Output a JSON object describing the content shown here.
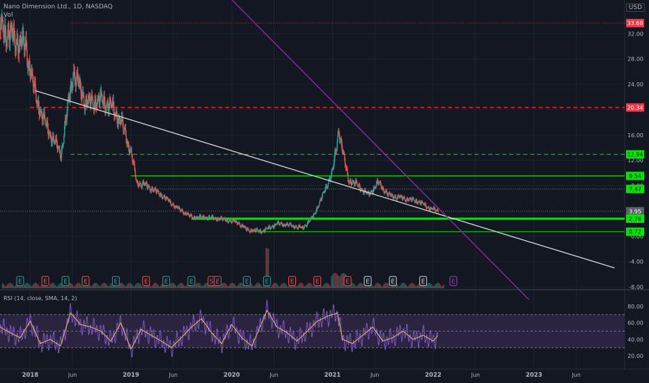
{
  "header": {
    "symbol": "Nano Dimension Ltd., 1D, NASDAQ",
    "volume_label": "Vol",
    "currency": "USD"
  },
  "rsi_header": {
    "text": "RSI (14, close, SMA, 14, 2)"
  },
  "colors": {
    "background": "#131722",
    "grid": "#1e222d",
    "candle_up": "#26a69a",
    "candle_down": "#ef5350",
    "green_level": "#00e600",
    "red_level": "#ff1a1a",
    "trendline_white": "#d9d9d9",
    "trendline_purple": "#9c27b0",
    "rsi_line": "#7e57c2",
    "rsi_ma": "#f0c05a",
    "rsi_band": "#2a2440"
  },
  "chart_data": {
    "type": "candlestick",
    "title": "Nano Dimension Ltd., 1D, NASDAQ",
    "y_axis": {
      "ticks": [
        "32.00",
        "28.00",
        "24.00",
        "20.00",
        "16.00",
        "12.00",
        "8.00",
        "4.00",
        "0.00",
        "-4.00",
        "-8.00"
      ],
      "range": [
        -8,
        36
      ]
    },
    "x_axis": {
      "ticks": [
        "2018",
        "Jun",
        "2019",
        "Jun",
        "2020",
        "Jun",
        "2021",
        "Jun",
        "2022",
        "Jun",
        "2023",
        "Jun"
      ]
    },
    "price_labels": [
      {
        "value": 33.68,
        "text": "33.68",
        "kind": "red"
      },
      {
        "value": 20.34,
        "text": "20.34",
        "kind": "red"
      },
      {
        "value": 12.94,
        "text": "12.94",
        "kind": "green"
      },
      {
        "value": 9.54,
        "text": "9.54",
        "kind": "green"
      },
      {
        "value": 7.47,
        "text": "7.47",
        "kind": "green"
      },
      {
        "value": 3.95,
        "text": "3.95",
        "kind": "current"
      },
      {
        "value": 2.78,
        "text": "2.78",
        "kind": "green"
      },
      {
        "value": 0.72,
        "text": "0.72",
        "kind": "green"
      }
    ],
    "horizontal_levels": [
      {
        "value": 33.68,
        "color": "red",
        "style": "dotted",
        "from_year": 2018.4
      },
      {
        "value": 20.34,
        "color": "red",
        "style": "dashed",
        "from_year": 2018.0
      },
      {
        "value": 12.94,
        "color": "green",
        "style": "dashed",
        "from_year": 2018.4
      },
      {
        "value": 9.54,
        "color": "green",
        "style": "solid",
        "from_year": 2019.0
      },
      {
        "value": 7.47,
        "color": "green",
        "style": "dotted",
        "from_year": 2019.1
      },
      {
        "value": 3.95,
        "color": "gray",
        "style": "dotted",
        "from_year": 2017.7
      },
      {
        "value": 2.78,
        "color": "green",
        "style": "thick",
        "from_year": 2019.6
      },
      {
        "value": 0.72,
        "color": "green",
        "style": "solid",
        "from_year": 2020.2
      }
    ],
    "trendlines": [
      {
        "name": "white",
        "from": {
          "year": 2018.05,
          "value": 23.0
        },
        "to": {
          "year": 2023.8,
          "value": -5.0
        }
      },
      {
        "name": "purple",
        "from": {
          "year": 2019.65,
          "value": 43.0
        },
        "to": {
          "year": 2022.95,
          "value": -10.0
        }
      }
    ],
    "price_series": [
      {
        "year": 2017.7,
        "value": 33.0
      },
      {
        "year": 2017.85,
        "value": 31.0
      },
      {
        "year": 2017.95,
        "value": 30.0
      },
      {
        "year": 2018.05,
        "value": 22.0
      },
      {
        "year": 2018.15,
        "value": 17.5
      },
      {
        "year": 2018.3,
        "value": 13.0
      },
      {
        "year": 2018.42,
        "value": 26.0
      },
      {
        "year": 2018.55,
        "value": 21.0
      },
      {
        "year": 2018.7,
        "value": 21.5
      },
      {
        "year": 2018.8,
        "value": 20.5
      },
      {
        "year": 2018.9,
        "value": 18.0
      },
      {
        "year": 2019.0,
        "value": 13.0
      },
      {
        "year": 2019.05,
        "value": 8.5
      },
      {
        "year": 2019.15,
        "value": 8.0
      },
      {
        "year": 2019.3,
        "value": 6.5
      },
      {
        "year": 2019.45,
        "value": 4.5
      },
      {
        "year": 2019.6,
        "value": 3.0
      },
      {
        "year": 2019.75,
        "value": 3.0
      },
      {
        "year": 2019.9,
        "value": 2.7
      },
      {
        "year": 2020.05,
        "value": 2.2
      },
      {
        "year": 2020.15,
        "value": 1.0
      },
      {
        "year": 2020.3,
        "value": 0.8
      },
      {
        "year": 2020.45,
        "value": 2.0
      },
      {
        "year": 2020.55,
        "value": 1.8
      },
      {
        "year": 2020.7,
        "value": 1.3
      },
      {
        "year": 2020.8,
        "value": 3.0
      },
      {
        "year": 2020.9,
        "value": 6.5
      },
      {
        "year": 2021.0,
        "value": 10.5
      },
      {
        "year": 2021.06,
        "value": 17.0
      },
      {
        "year": 2021.1,
        "value": 13.0
      },
      {
        "year": 2021.15,
        "value": 9.0
      },
      {
        "year": 2021.25,
        "value": 8.0
      },
      {
        "year": 2021.35,
        "value": 6.5
      },
      {
        "year": 2021.45,
        "value": 8.5
      },
      {
        "year": 2021.55,
        "value": 6.5
      },
      {
        "year": 2021.7,
        "value": 6.0
      },
      {
        "year": 2021.85,
        "value": 5.5
      },
      {
        "year": 2021.95,
        "value": 4.5
      },
      {
        "year": 2022.05,
        "value": 3.95
      }
    ],
    "earnings_markers": [
      {
        "year": 2017.9,
        "type": "E",
        "color": "green"
      },
      {
        "year": 2018.15,
        "type": "E",
        "color": "red"
      },
      {
        "year": 2018.35,
        "type": "E",
        "color": "green"
      },
      {
        "year": 2018.55,
        "type": "E",
        "color": "red"
      },
      {
        "year": 2018.85,
        "type": "E",
        "color": "green"
      },
      {
        "year": 2019.15,
        "type": "E",
        "color": "red"
      },
      {
        "year": 2019.35,
        "type": "E",
        "color": "green"
      },
      {
        "year": 2019.6,
        "type": "E",
        "color": "green"
      },
      {
        "year": 2019.8,
        "type": "S",
        "color": "red"
      },
      {
        "year": 2019.86,
        "type": "E",
        "color": "red"
      },
      {
        "year": 2020.15,
        "type": "E",
        "color": "green"
      },
      {
        "year": 2020.35,
        "type": "E",
        "color": "green"
      },
      {
        "year": 2020.6,
        "type": "E",
        "color": "red"
      },
      {
        "year": 2020.85,
        "type": "E",
        "color": "red"
      },
      {
        "year": 2021.15,
        "type": "E",
        "color": "red"
      },
      {
        "year": 2021.35,
        "type": "E",
        "color": "gray"
      },
      {
        "year": 2021.6,
        "type": "E",
        "color": "gray"
      },
      {
        "year": 2021.9,
        "type": "E",
        "color": "gray"
      },
      {
        "year": 2022.2,
        "type": "E",
        "color": "purple"
      }
    ],
    "rsi": {
      "axis_ticks": [
        "80.00",
        "60.00",
        "40.00",
        "20.00"
      ],
      "range": [
        15,
        90
      ],
      "band": [
        30,
        70
      ],
      "mid": 50,
      "series": [
        {
          "year": 2017.7,
          "value": 55
        },
        {
          "year": 2017.8,
          "value": 48
        },
        {
          "year": 2017.9,
          "value": 42
        },
        {
          "year": 2018.0,
          "value": 62
        },
        {
          "year": 2018.1,
          "value": 35
        },
        {
          "year": 2018.2,
          "value": 40
        },
        {
          "year": 2018.3,
          "value": 32
        },
        {
          "year": 2018.4,
          "value": 72
        },
        {
          "year": 2018.5,
          "value": 58
        },
        {
          "year": 2018.6,
          "value": 55
        },
        {
          "year": 2018.7,
          "value": 50
        },
        {
          "year": 2018.8,
          "value": 38
        },
        {
          "year": 2018.9,
          "value": 60
        },
        {
          "year": 2019.0,
          "value": 28
        },
        {
          "year": 2019.1,
          "value": 52
        },
        {
          "year": 2019.2,
          "value": 45
        },
        {
          "year": 2019.3,
          "value": 38
        },
        {
          "year": 2019.4,
          "value": 30
        },
        {
          "year": 2019.5,
          "value": 42
        },
        {
          "year": 2019.6,
          "value": 55
        },
        {
          "year": 2019.7,
          "value": 65
        },
        {
          "year": 2019.8,
          "value": 48
        },
        {
          "year": 2019.9,
          "value": 35
        },
        {
          "year": 2020.0,
          "value": 58
        },
        {
          "year": 2020.1,
          "value": 42
        },
        {
          "year": 2020.2,
          "value": 32
        },
        {
          "year": 2020.35,
          "value": 75
        },
        {
          "year": 2020.45,
          "value": 55
        },
        {
          "year": 2020.55,
          "value": 48
        },
        {
          "year": 2020.65,
          "value": 38
        },
        {
          "year": 2020.75,
          "value": 50
        },
        {
          "year": 2020.85,
          "value": 62
        },
        {
          "year": 2020.95,
          "value": 68
        },
        {
          "year": 2021.05,
          "value": 72
        },
        {
          "year": 2021.1,
          "value": 40
        },
        {
          "year": 2021.2,
          "value": 35
        },
        {
          "year": 2021.3,
          "value": 45
        },
        {
          "year": 2021.4,
          "value": 55
        },
        {
          "year": 2021.5,
          "value": 38
        },
        {
          "year": 2021.6,
          "value": 42
        },
        {
          "year": 2021.7,
          "value": 50
        },
        {
          "year": 2021.8,
          "value": 40
        },
        {
          "year": 2021.9,
          "value": 45
        },
        {
          "year": 2022.0,
          "value": 38
        },
        {
          "year": 2022.05,
          "value": 45
        }
      ]
    }
  }
}
